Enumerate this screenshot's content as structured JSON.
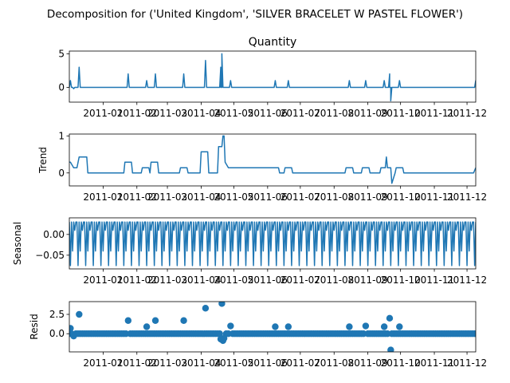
{
  "figure": {
    "suptitle": "Decomposition for ('United Kingdom', 'SILVER BRACELET W PASTEL FLOWER')",
    "line_color": "#1f77b4",
    "xticks": [
      "2011-01",
      "2011-02",
      "2011-03",
      "2011-04",
      "2011-05",
      "2011-06",
      "2011-07",
      "2011-08",
      "2011-09",
      "2011-10",
      "2011-11",
      "2011-12"
    ],
    "xlim": [
      "2010-12-01",
      "2011-12-09"
    ]
  },
  "chart_data": [
    {
      "type": "line",
      "title": "Quantity",
      "ylabel": "",
      "ylim": [
        -2.2,
        5.4
      ],
      "yticks": [
        0,
        5
      ],
      "ytick_labels": [
        "0",
        "5"
      ],
      "baseline": 0,
      "x": [
        "2010-12-02",
        "2010-12-05",
        "2010-12-10",
        "2011-01-24",
        "2011-02-10",
        "2011-02-18",
        "2011-03-16",
        "2011-04-05",
        "2011-04-19",
        "2011-04-20",
        "2011-04-28",
        "2011-06-08",
        "2011-06-20",
        "2011-08-15",
        "2011-08-30",
        "2011-09-16",
        "2011-09-21",
        "2011-09-30",
        "2011-12-09"
      ],
      "y": [
        1,
        -0.2,
        3,
        2,
        1,
        2,
        2,
        4,
        3,
        5,
        1,
        1,
        1,
        1,
        1,
        1,
        2,
        1,
        1
      ],
      "dips": [
        [
          "2011-09-22",
          -2
        ]
      ]
    },
    {
      "type": "line",
      "title": "",
      "ylabel": "Trend",
      "ylim": [
        -0.35,
        1.05
      ],
      "yticks": [
        0,
        1
      ],
      "ytick_labels": [
        "0",
        "1"
      ],
      "baseline": 0,
      "x": [
        "2010-12-01",
        "2010-12-02",
        "2010-12-05",
        "2010-12-08",
        "2010-12-10",
        "2010-12-11",
        "2010-12-17",
        "2010-12-18",
        "2011-01-20",
        "2011-01-21",
        "2011-01-27",
        "2011-01-28",
        "2011-02-05",
        "2011-02-06",
        "2011-02-12",
        "2011-02-13",
        "2011-02-14",
        "2011-02-20",
        "2011-02-21",
        "2011-03-12",
        "2011-03-13",
        "2011-03-19",
        "2011-03-20",
        "2011-03-31",
        "2011-04-01",
        "2011-04-07",
        "2011-04-08",
        "2011-04-16",
        "2011-04-17",
        "2011-04-20",
        "2011-04-21",
        "2011-04-22",
        "2011-04-23",
        "2011-04-26",
        "2011-06-04",
        "2011-06-05",
        "2011-06-11",
        "2011-06-12",
        "2011-06-16",
        "2011-06-17",
        "2011-06-23",
        "2011-06-24",
        "2011-08-11",
        "2011-08-12",
        "2011-08-18",
        "2011-08-19",
        "2011-08-26",
        "2011-08-27",
        "2011-09-02",
        "2011-09-03",
        "2011-09-12",
        "2011-09-13",
        "2011-09-17",
        "2011-09-18",
        "2011-09-19",
        "2011-09-22",
        "2011-09-23",
        "2011-09-26",
        "2011-09-27",
        "2011-10-03",
        "2011-10-04",
        "2011-12-07",
        "2011-12-09"
      ],
      "y": [
        0.29,
        0.29,
        0.14,
        0.14,
        0.43,
        0.43,
        0.43,
        0,
        0,
        0.29,
        0.29,
        0,
        0,
        0.14,
        0.14,
        0,
        0.29,
        0.29,
        0,
        0,
        0.14,
        0.14,
        0,
        0,
        0.57,
        0.57,
        0,
        0,
        0.71,
        0.71,
        1,
        1,
        0.29,
        0.14,
        0.14,
        0.14,
        0.14,
        0,
        0,
        0.14,
        0.14,
        0,
        0,
        0.14,
        0.14,
        0,
        0,
        0.14,
        0.14,
        0,
        0,
        0.14,
        0.14,
        0.43,
        0.14,
        0.14,
        -0.28,
        0,
        0.14,
        0.14,
        0,
        0,
        0.14
      ]
    },
    {
      "type": "line",
      "title": "",
      "ylabel": "Seasonal",
      "ylim": [
        -0.083,
        0.04
      ],
      "yticks": [
        0,
        -0.05
      ],
      "ytick_labels": [
        "0.00",
        "−0.05"
      ],
      "period_days": 7,
      "pattern": [
        0.03,
        -0.075,
        0.03,
        -0.04,
        0.03,
        0.01,
        0.03
      ]
    },
    {
      "type": "scatter",
      "title": "",
      "ylabel": "Resid",
      "ylim": [
        -2.35,
        4.15
      ],
      "yticks": [
        0,
        2.5
      ],
      "ytick_labels": [
        "0.0",
        "2.5"
      ],
      "baseline": 0,
      "background_x_step_days": 2,
      "x": [
        "2010-12-02",
        "2010-12-05",
        "2010-12-10",
        "2011-01-24",
        "2011-02-10",
        "2011-02-18",
        "2011-03-16",
        "2011-04-05",
        "2011-04-19",
        "2011-04-20",
        "2011-04-21",
        "2011-04-22",
        "2011-04-28",
        "2011-06-08",
        "2011-06-20",
        "2011-08-15",
        "2011-08-30",
        "2011-09-16",
        "2011-09-21",
        "2011-09-22",
        "2011-09-30"
      ],
      "y": [
        0.7,
        -0.3,
        2.5,
        1.7,
        0.9,
        1.7,
        1.7,
        3.3,
        -0.7,
        3.9,
        -0.9,
        -0.6,
        1.0,
        0.9,
        0.9,
        0.9,
        1.0,
        0.9,
        2.0,
        -2.1,
        0.9
      ]
    }
  ]
}
